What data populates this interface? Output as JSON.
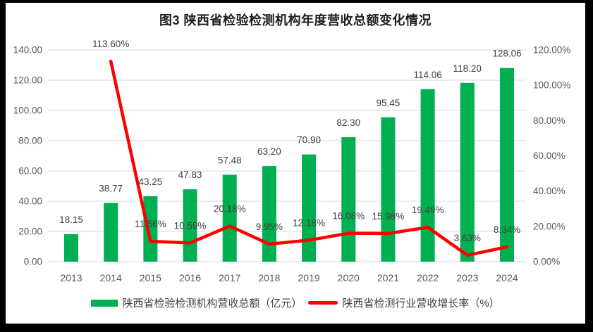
{
  "colors": {
    "bar": "#00B050",
    "line": "#FF0000",
    "grid": "#D9D9D9",
    "axis_text": "#595959",
    "label_text": "#404040",
    "title_text": "#1F1F1F",
    "frame": "#000000",
    "background": "#FFFFFF"
  },
  "chart_data": {
    "type": "combo",
    "title": "图3 陕西省检验检测机构年度营收总额变化情况",
    "categories": [
      "2013",
      "2014",
      "2015",
      "2016",
      "2017",
      "2018",
      "2019",
      "2020",
      "2021",
      "2022",
      "2023",
      "2024"
    ],
    "series": [
      {
        "name": "陕西省检验检测机构营收总额（亿元）",
        "type": "bar",
        "axis": "left",
        "color": "#00B050",
        "values": [
          18.15,
          38.77,
          43.25,
          47.83,
          57.48,
          63.2,
          70.9,
          82.3,
          95.45,
          114.06,
          118.2,
          128.06
        ],
        "labels": [
          "18.15",
          "38.77",
          "43.25",
          "47.83",
          "57.48",
          "63.20",
          "70.90",
          "82.30",
          "95.45",
          "114.06",
          "118.20",
          "128.06"
        ]
      },
      {
        "name": "陕西省检测行业营收增长率（%）",
        "type": "line",
        "axis": "right",
        "color": "#FF0000",
        "values": [
          null,
          113.6,
          11.56,
          10.59,
          20.18,
          9.95,
          12.18,
          16.08,
          15.98,
          19.49,
          3.63,
          8.34
        ],
        "labels": [
          null,
          "113.60%",
          "11.56%",
          "10.59%",
          "20.18%",
          "9.95%",
          "12.18%",
          "16.08%",
          "15.98%",
          "19.49%",
          "3.63%",
          "8.34%"
        ]
      }
    ],
    "left_axis": {
      "min": 0,
      "max": 140,
      "step": 20,
      "tick_labels": [
        "0.00",
        "20.00",
        "40.00",
        "60.00",
        "80.00",
        "100.00",
        "120.00",
        "140.00"
      ]
    },
    "right_axis": {
      "min": 0,
      "max": 120,
      "step": 20,
      "tick_labels": [
        "0.00%",
        "20.00%",
        "40.00%",
        "60.00%",
        "80.00%",
        "100.00%",
        "120.00%"
      ]
    },
    "grid": "on",
    "legend_position": "bottom"
  }
}
